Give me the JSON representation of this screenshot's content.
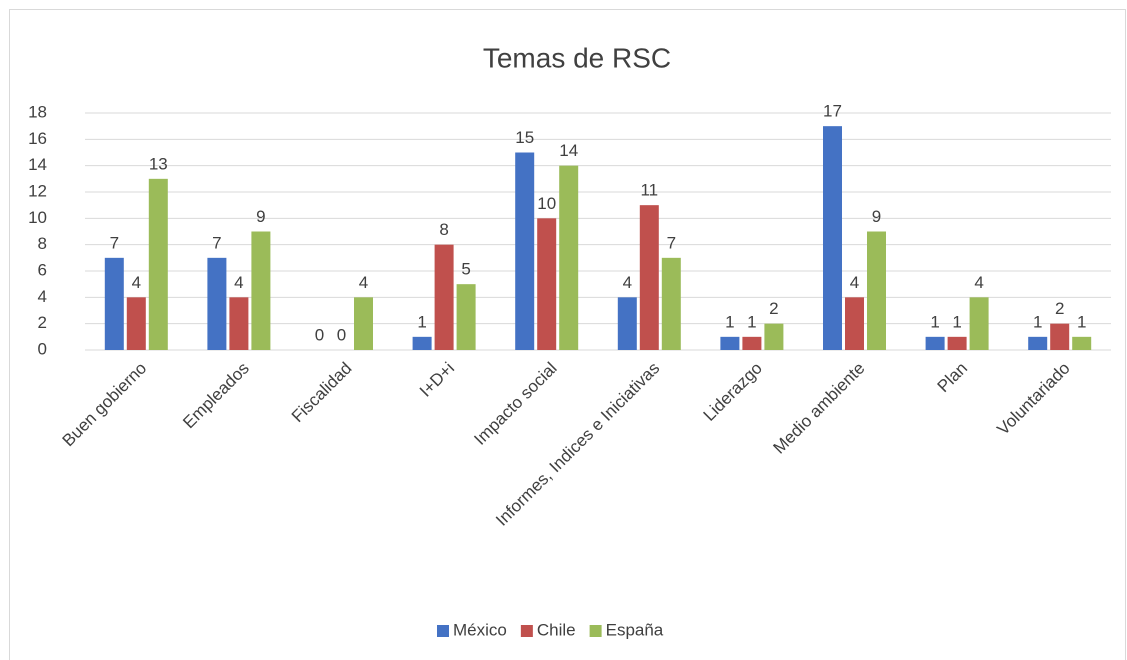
{
  "chart_data": {
    "type": "bar",
    "title": "Temas de RSC",
    "categories": [
      "Buen gobierno",
      "Empleados",
      "Fiscalidad",
      "I+D+i",
      "Impacto social",
      "Informes, Indices e Iniciativas",
      "Liderazgo",
      "Medio ambiente",
      "Plan",
      "Voluntariado"
    ],
    "series": [
      {
        "name": "México",
        "color": "#4472c4",
        "values": [
          7,
          7,
          0,
          1,
          15,
          4,
          1,
          17,
          1,
          1
        ]
      },
      {
        "name": "Chile",
        "color": "#c0504d",
        "values": [
          4,
          4,
          0,
          8,
          10,
          11,
          1,
          4,
          1,
          2
        ]
      },
      {
        "name": "España",
        "color": "#9bbb59",
        "values": [
          13,
          9,
          4,
          5,
          14,
          7,
          2,
          9,
          4,
          1
        ]
      }
    ],
    "ylim": [
      0,
      18
    ],
    "yticks": [
      0,
      2,
      4,
      6,
      8,
      10,
      12,
      14,
      16,
      18
    ],
    "grid": true,
    "legend": "bottom"
  }
}
